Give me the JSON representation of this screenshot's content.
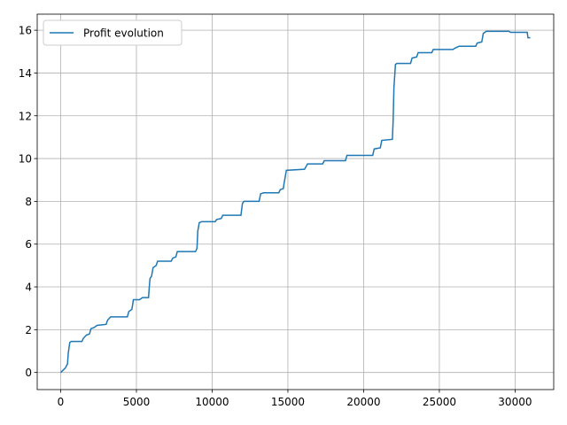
{
  "chart_data": {
    "type": "line",
    "x": [
      0,
      300,
      450,
      500,
      600,
      700,
      1400,
      1500,
      1700,
      1900,
      2000,
      2200,
      2400,
      3000,
      3100,
      3300,
      4400,
      4500,
      4700,
      4800,
      5200,
      5400,
      5800,
      5850,
      5900,
      6000,
      6100,
      6300,
      6400,
      7300,
      7400,
      7600,
      7700,
      8900,
      9000,
      9050,
      9150,
      9300,
      10200,
      10300,
      10600,
      10700,
      11900,
      12000,
      12100,
      13100,
      13200,
      13400,
      14400,
      14500,
      14700,
      14750,
      14900,
      16100,
      16300,
      17300,
      17400,
      18800,
      18900,
      20600,
      20700,
      21100,
      21200,
      21900,
      21950,
      22000,
      22100,
      22200,
      23100,
      23200,
      23500,
      23600,
      24500,
      24600,
      25900,
      26000,
      26300,
      27400,
      27500,
      27800,
      27900,
      28100,
      29600,
      29700,
      30800,
      30850,
      31000
    ],
    "series": [
      {
        "name": "Profit evolution",
        "color": "#1f77b4",
        "values": [
          0,
          0.2,
          0.4,
          0.9,
          1.4,
          1.45,
          1.45,
          1.6,
          1.75,
          1.8,
          2.05,
          2.1,
          2.2,
          2.25,
          2.45,
          2.6,
          2.6,
          2.85,
          2.95,
          3.4,
          3.4,
          3.5,
          3.5,
          4.0,
          4.4,
          4.5,
          4.9,
          5.0,
          5.2,
          5.2,
          5.35,
          5.4,
          5.65,
          5.65,
          5.8,
          6.6,
          7.0,
          7.05,
          7.05,
          7.15,
          7.2,
          7.35,
          7.35,
          7.9,
          8.0,
          8.0,
          8.35,
          8.4,
          8.4,
          8.55,
          8.6,
          8.85,
          9.45,
          9.5,
          9.75,
          9.75,
          9.9,
          9.9,
          10.15,
          10.15,
          10.45,
          10.5,
          10.85,
          10.9,
          11.8,
          13.3,
          14.4,
          14.45,
          14.45,
          14.7,
          14.75,
          14.95,
          14.95,
          15.1,
          15.1,
          15.15,
          15.25,
          15.25,
          15.4,
          15.45,
          15.85,
          15.95,
          15.95,
          15.9,
          15.9,
          15.65,
          15.65
        ]
      }
    ],
    "xlim": [
      -1550,
      32550
    ],
    "xticks": [
      0,
      5000,
      10000,
      15000,
      20000,
      25000,
      30000
    ],
    "ylim": [
      -0.8,
      16.75
    ],
    "yticks": [
      0,
      2,
      4,
      6,
      8,
      10,
      12,
      14,
      16
    ],
    "grid": true,
    "legend": "upper left"
  }
}
